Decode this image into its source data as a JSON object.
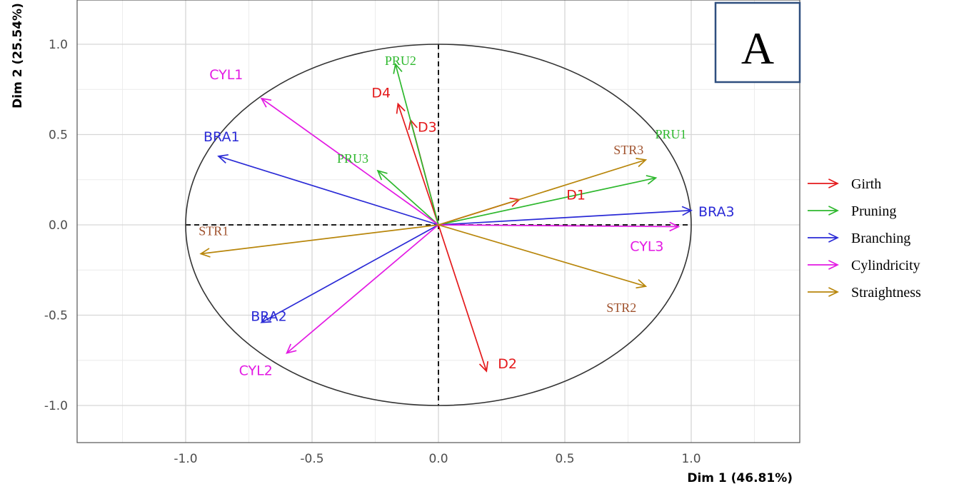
{
  "chart_data": {
    "type": "scatter",
    "subtype": "pca-variable-correlation-circle",
    "panel_label": "A",
    "xlabel": "Dim 1 (46.81%)",
    "ylabel": "Dim 2 (25.54%)",
    "xlim": [
      -1.45,
      1.42
    ],
    "ylim": [
      -1.2,
      1.2
    ],
    "xticks": [
      -1.0,
      -0.5,
      0.0,
      0.5,
      1.0
    ],
    "xtick_labels": [
      "-1.0",
      "-0.5",
      "0.0",
      "0.5",
      "1.0"
    ],
    "yticks": [
      -1.0,
      -0.5,
      0.0,
      0.5,
      1.0
    ],
    "ytick_labels": [
      "-1.0",
      "-0.5",
      "0.0",
      "0.5",
      "1.0"
    ],
    "grid": true,
    "unit_circle": true,
    "legend_position": "right",
    "groups": [
      {
        "name": "Girth",
        "color": "#e41a1c"
      },
      {
        "name": "Pruning",
        "color": "#2eb82e"
      },
      {
        "name": "Branching",
        "color": "#2a2ad6"
      },
      {
        "name": "Cylindricity",
        "color": "#e31ae3"
      },
      {
        "name": "Straightness",
        "color": "#b8860b"
      }
    ],
    "variables": [
      {
        "name": "D1",
        "group": "Girth",
        "x": 0.32,
        "y": 0.14
      },
      {
        "name": "D2",
        "group": "Girth",
        "x": 0.19,
        "y": -0.81
      },
      {
        "name": "D3",
        "group": "Girth",
        "x": -0.11,
        "y": 0.58
      },
      {
        "name": "D4",
        "group": "Girth",
        "x": -0.16,
        "y": 0.67
      },
      {
        "name": "PRU1",
        "group": "Pruning",
        "x": 0.86,
        "y": 0.26
      },
      {
        "name": "PRU2",
        "group": "Pruning",
        "x": -0.17,
        "y": 0.89
      },
      {
        "name": "PRU3",
        "group": "Pruning",
        "x": -0.24,
        "y": 0.3
      },
      {
        "name": "BRA1",
        "group": "Branching",
        "x": -0.87,
        "y": 0.38
      },
      {
        "name": "BRA2",
        "group": "Branching",
        "x": -0.7,
        "y": -0.54
      },
      {
        "name": "BRA3",
        "group": "Branching",
        "x": 1.0,
        "y": 0.08
      },
      {
        "name": "CYL1",
        "group": "Cylindricity",
        "x": -0.7,
        "y": 0.7
      },
      {
        "name": "CYL2",
        "group": "Cylindricity",
        "x": -0.6,
        "y": -0.71
      },
      {
        "name": "CYL3",
        "group": "Cylindricity",
        "x": 0.95,
        "y": -0.01
      },
      {
        "name": "STR1",
        "group": "Straightness",
        "x": -0.94,
        "y": -0.16
      },
      {
        "name": "STR2",
        "group": "Straightness",
        "x": 0.82,
        "y": -0.34
      },
      {
        "name": "STR3",
        "group": "Straightness",
        "x": 0.82,
        "y": 0.36
      }
    ]
  }
}
